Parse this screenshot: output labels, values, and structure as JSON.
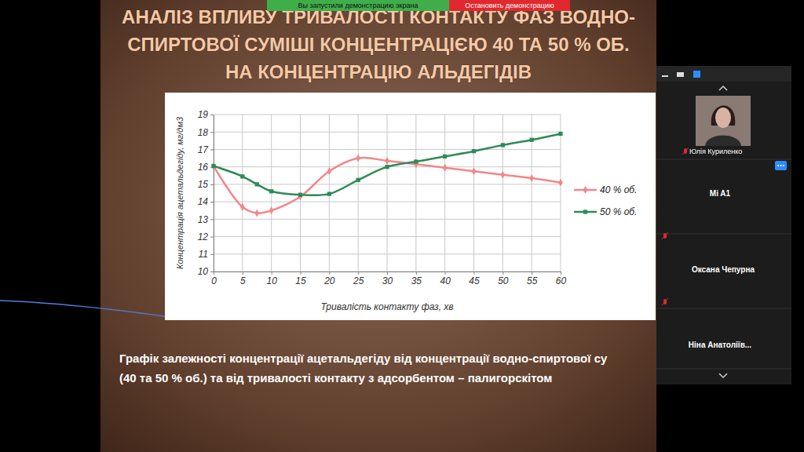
{
  "chart_data": {
    "type": "line",
    "title": "АНАЛІЗ ВПЛИВУ ТРИВАЛОСТІ КОНТАКТУ ФАЗ ВОДНО-СПИРТОВОЇ СУМІШІ КОНЦЕНТРАЦІЄЮ 40 ТА 50 % ОБ. НА КОНЦЕНТРАЦІЮ АЛЬДЕГІДІВ",
    "x_label": "Тривалість контакту фаз, хв",
    "y_label": "Концентрація ацетальдегіду, мг/дм3",
    "x": [
      0,
      5,
      7.5,
      10,
      15,
      20,
      25,
      30,
      35,
      40,
      45,
      50,
      55,
      60
    ],
    "series": [
      {
        "name": "40 % об.",
        "color": "#f2878a",
        "marker": "diamond",
        "line_style": "solid",
        "values": [
          16.05,
          13.7,
          13.35,
          13.5,
          14.3,
          15.75,
          16.5,
          16.35,
          16.15,
          15.95,
          15.75,
          15.55,
          15.35,
          15.1
        ]
      },
      {
        "name": "50 % об.",
        "color": "#2e8b57",
        "marker": "square",
        "line_style": "solid",
        "values": [
          16.05,
          15.45,
          15.0,
          14.6,
          14.4,
          14.45,
          15.25,
          16.0,
          16.3,
          16.6,
          16.9,
          17.25,
          17.55,
          17.9
        ]
      }
    ],
    "xlim": [
      0,
      60
    ],
    "xticks": [
      0,
      5,
      10,
      15,
      20,
      25,
      30,
      35,
      40,
      45,
      50,
      55,
      60
    ],
    "ylim": [
      10,
      19
    ],
    "yticks": [
      10,
      11,
      12,
      13,
      14,
      15,
      16,
      17,
      18,
      19
    ],
    "grid": true,
    "legend": "right"
  },
  "slide": {
    "caption_lines": [
      "Графік залежності концентрації ацетальдегіду від концентрації водно-спиртової су",
      "(40 та 50 % об.) та від тривалості контакту з адсорбентом – палигорскітом"
    ]
  },
  "call": {
    "banner": "Вы запустили демонстрацию экрана",
    "stop_button": "Остановить демонстрацию",
    "participants": [
      "Юлія Куриленко",
      "Mi A1",
      "Оксана Чепурна",
      "Ніна Анатоліїв..."
    ]
  }
}
